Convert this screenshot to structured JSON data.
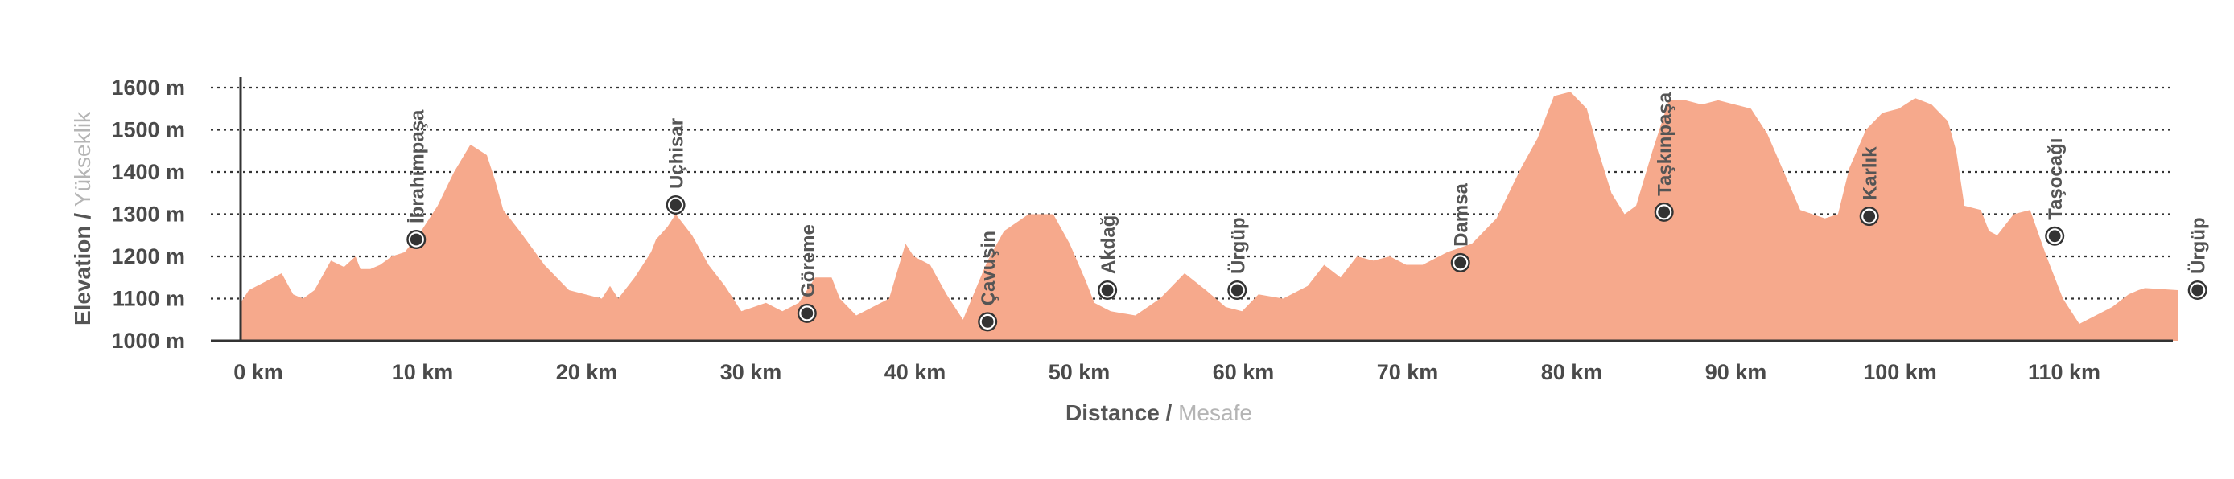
{
  "chart_data": {
    "type": "area",
    "xlabel": "Distance",
    "xlabel_alt": "Mesafe",
    "ylabel": "Elevation",
    "ylabel_alt": "Yükseklik",
    "xlim": [
      0,
      118
    ],
    "ylim": [
      1000,
      1600
    ],
    "y_ticks": [
      1000,
      1100,
      1200,
      1300,
      1400,
      1500,
      1600
    ],
    "y_tick_labels": [
      "1000 m",
      "1100 m",
      "1200 m",
      "1300 m",
      "1400 m",
      "1500 m",
      "1600 m"
    ],
    "x_ticks": [
      0,
      10,
      20,
      30,
      40,
      50,
      60,
      70,
      80,
      90,
      100,
      110
    ],
    "x_tick_labels": [
      "0 km",
      "10 km",
      "20 km",
      "30 km",
      "40 km",
      "50 km",
      "60 km",
      "70 km",
      "80 km",
      "90 km",
      "100 km",
      "110 km"
    ],
    "grid": true,
    "series": [
      {
        "x": [
          0,
          0.5,
          1.5,
          2.5,
          3.2,
          3.8,
          4.5,
          5.5,
          6.3,
          7.0,
          7.3,
          7.9,
          8.5,
          9.2,
          10.0,
          11.0,
          12.0,
          13.0,
          14.0,
          15.0,
          15.5,
          16.0,
          17.0,
          18.5,
          20.0,
          22.0,
          22.5,
          23.0,
          24.0,
          25.0,
          25.3,
          26.0,
          26.5,
          27.5,
          28.5,
          29.5,
          30.5,
          32.0,
          33.0,
          34.0,
          35.0,
          36.0,
          36.5,
          37.5,
          38.5,
          39.5,
          40.5,
          41.0,
          42.0,
          43.0,
          44.0,
          45.5,
          46.5,
          48.0,
          49.5,
          50.5,
          51.5,
          52.0,
          53.0,
          54.5,
          56.0,
          57.5,
          58.8,
          60.0,
          61.0,
          62.0,
          63.5,
          64.0,
          65.0,
          66.0,
          67.0,
          68.0,
          69.0,
          70.0,
          71.0,
          72.0,
          73.5,
          75.0,
          76.5,
          78.0,
          79.0,
          80.0,
          81.0,
          82.0,
          82.7,
          83.5,
          84.3,
          85.0,
          86.0,
          87.0,
          88.0,
          89.0,
          90.0,
          91.0,
          92.0,
          93.0,
          94.0,
          95.0,
          96.5,
          97.3,
          98.0,
          99.0,
          100.0,
          101.0,
          102.0,
          103.0,
          104.0,
          104.5,
          105.0,
          106.0,
          106.5,
          107.0,
          108.0,
          109.0,
          110.0,
          111.0,
          112.0,
          113.0,
          114.0,
          115.0,
          115.6,
          116.0,
          118.0
        ],
        "y": [
          1090,
          1120,
          1140,
          1160,
          1110,
          1100,
          1120,
          1190,
          1175,
          1200,
          1170,
          1170,
          1180,
          1200,
          1210,
          1260,
          1320,
          1400,
          1465,
          1440,
          1380,
          1310,
          1260,
          1180,
          1120,
          1100,
          1130,
          1100,
          1150,
          1210,
          1240,
          1270,
          1300,
          1250,
          1180,
          1130,
          1070,
          1090,
          1070,
          1090,
          1150,
          1150,
          1100,
          1060,
          1080,
          1100,
          1230,
          1200,
          1180,
          1110,
          1050,
          1190,
          1260,
          1300,
          1300,
          1230,
          1140,
          1090,
          1070,
          1060,
          1100,
          1160,
          1120,
          1080,
          1070,
          1110,
          1100,
          1110,
          1130,
          1180,
          1150,
          1200,
          1190,
          1200,
          1180,
          1180,
          1210,
          1230,
          1290,
          1410,
          1480,
          1580,
          1590,
          1550,
          1450,
          1350,
          1300,
          1320,
          1450,
          1570,
          1570,
          1560,
          1570,
          1560,
          1550,
          1490,
          1400,
          1310,
          1290,
          1300,
          1410,
          1500,
          1540,
          1550,
          1575,
          1560,
          1520,
          1450,
          1320,
          1310,
          1260,
          1250,
          1300,
          1310,
          1200,
          1100,
          1040,
          1060,
          1080,
          1110,
          1120,
          1125,
          1120
        ]
      }
    ],
    "waypoints": [
      {
        "name": "İbrahimpaşa",
        "x": 10.7,
        "y": 1240
      },
      {
        "name": "Uçhisar",
        "x": 26.5,
        "y": 1322
      },
      {
        "name": "Göreme",
        "x": 34.5,
        "y": 1065
      },
      {
        "name": "Çavuşin",
        "x": 45.5,
        "y": 1045
      },
      {
        "name": "Akdağ",
        "x": 52.8,
        "y": 1120
      },
      {
        "name": "Ürgüp",
        "x": 60.7,
        "y": 1120
      },
      {
        "name": "Damsa",
        "x": 74.3,
        "y": 1185
      },
      {
        "name": "Taşkınpaşa",
        "x": 86.7,
        "y": 1305
      },
      {
        "name": "Karlık",
        "x": 99.2,
        "y": 1295
      },
      {
        "name": "Taşocağı",
        "x": 110.5,
        "y": 1248
      },
      {
        "name": "Ürgüp",
        "x": 119.2,
        "y": 1120
      }
    ],
    "colors": {
      "area": "#f6a98c",
      "grid": "#333333",
      "axis": "#333333",
      "marker_fill": "#333333",
      "marker_ring": "#ffffff",
      "tick_label": "#4a4a4a",
      "axis_title": "#555555",
      "axis_title_alt": "#b5b5b5"
    }
  }
}
